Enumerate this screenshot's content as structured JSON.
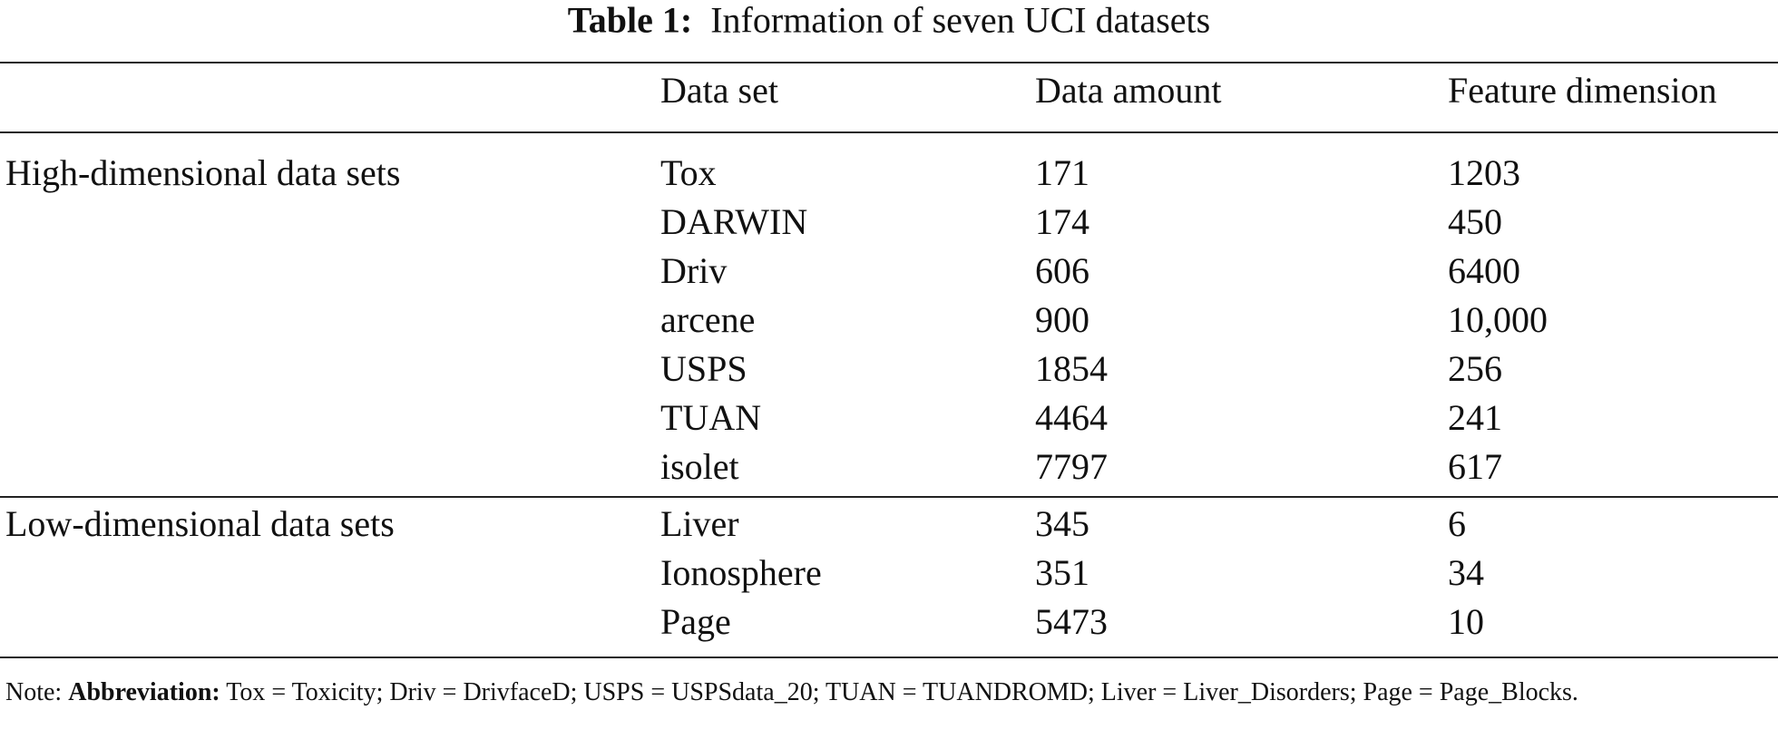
{
  "table": {
    "caption": {
      "label": "Table 1:",
      "text": "Information of seven UCI datasets"
    },
    "columns": [
      "Data set",
      "Data amount",
      "Feature dimension"
    ],
    "groups": [
      {
        "label": "High-dimensional data sets",
        "rows": [
          [
            "Tox",
            "171",
            "1203"
          ],
          [
            "DARWIN",
            "174",
            "450"
          ],
          [
            "Driv",
            "606",
            "6400"
          ],
          [
            "arcene",
            "900",
            "10,000"
          ],
          [
            "USPS",
            "1854",
            "256"
          ],
          [
            "TUAN",
            "4464",
            "241"
          ],
          [
            "isolet",
            "7797",
            "617"
          ]
        ]
      },
      {
        "label": "Low-dimensional data sets",
        "rows": [
          [
            "Liver",
            "345",
            "6"
          ],
          [
            "Ionosphere",
            "351",
            "34"
          ],
          [
            "Page",
            "5473",
            "10"
          ]
        ]
      }
    ],
    "note": {
      "prefix": "Note:",
      "bold": "Abbreviation:",
      "text": "Tox = Toxicity; Driv = DrivfaceD; USPS = USPSdata_20; TUAN = TUANDROMD; Liver = Liver_Disorders; Page = Page_Blocks."
    }
  }
}
